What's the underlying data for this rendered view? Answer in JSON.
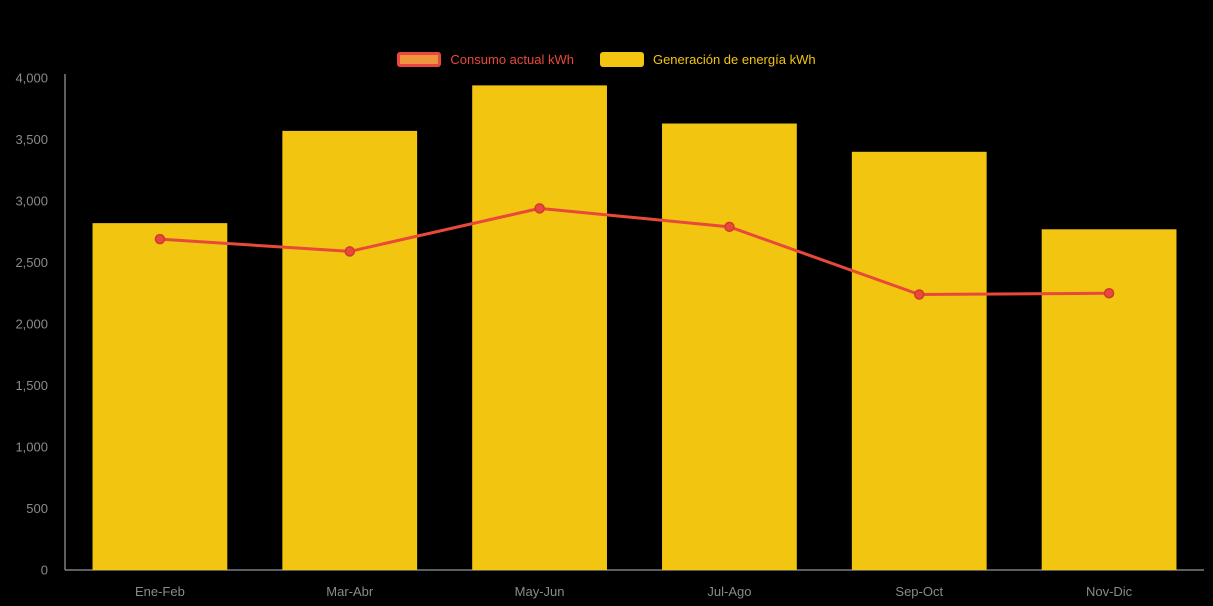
{
  "colors": {
    "background": "#000000",
    "axis_label": "#8a8a8a",
    "axis_line": "#bdbdbd",
    "bar_fill": "#f2c511",
    "line_stroke": "#e8493a"
  },
  "legend": {
    "items": [
      {
        "label": "Consumo actual kWh",
        "swatch_fill": "#f0953e",
        "swatch_border": "#e8493a",
        "text_color": "#e8493a"
      },
      {
        "label": "Generación de energía kWh",
        "swatch_fill": "#f2c511",
        "swatch_border": "",
        "text_color": "#f2c511"
      }
    ]
  },
  "chart_data": {
    "type": "bar",
    "subtype": "bar-with-line-overlay",
    "categories": [
      "Ene-Feb",
      "Mar-Abr",
      "May-Jun",
      "Jul-Ago",
      "Sep-Oct",
      "Nov-Dic"
    ],
    "series": [
      {
        "name": "Consumo actual kWh",
        "type": "line",
        "color": "#e8493a",
        "values": [
          2690,
          2590,
          2940,
          2790,
          2240,
          2250
        ]
      },
      {
        "name": "Generación de energía kWh",
        "type": "bar",
        "color": "#f2c511",
        "values": [
          2820,
          3570,
          3940,
          3630,
          3400,
          2770
        ]
      }
    ],
    "title": "",
    "xlabel": "",
    "ylabel": "",
    "ylim": [
      0,
      4000
    ],
    "y_tick_step": 500,
    "y_ticks": [
      "0",
      "500",
      "1,000",
      "1,500",
      "2,000",
      "2,500",
      "3,000",
      "3,500",
      "4,000"
    ],
    "grid": false,
    "legend_position": "top"
  }
}
